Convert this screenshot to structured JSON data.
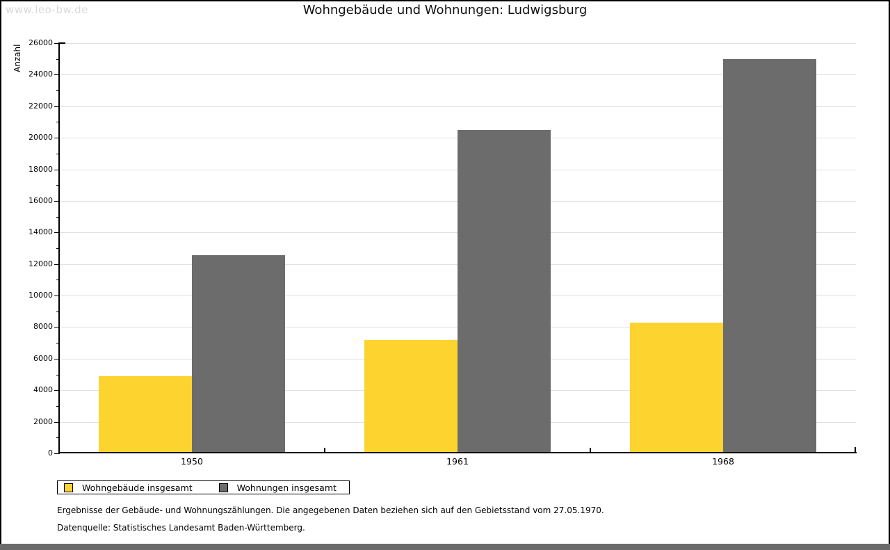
{
  "watermark": "www.leo-bw.de",
  "header": {
    "title": "Wohngebäude und Wohnungen: Ludwigsburg"
  },
  "chart_data": {
    "type": "bar",
    "title": "Wohngebäude und Wohnungen: Ludwigsburg",
    "xlabel": "",
    "ylabel": "Anzahl",
    "categories": [
      "1950",
      "1961",
      "1968"
    ],
    "series": [
      {
        "name": "Wohngebäude insgesamt",
        "color": "#fdd32f",
        "values": [
          4900,
          7200,
          8300
        ]
      },
      {
        "name": "Wohnungen insgesamt",
        "color": "#6c6c6c",
        "values": [
          12550,
          20470,
          25000
        ]
      }
    ],
    "ylim": [
      0,
      26000
    ],
    "ytick_step": 2000,
    "minor_tick_step": 1000,
    "grid": true,
    "gridline_color": "#e0e0e0",
    "legend_position": "bottom-left"
  },
  "footnotes": {
    "line1": "Ergebnisse der Gebäude- und Wohnungszählungen. Die angegebenen Daten beziehen sich auf den Gebietsstand vom 27.05.1970.",
    "line2": "Datenquelle: Statistisches Landesamt Baden-Württemberg."
  },
  "colors": {
    "bar_yellow": "#fdd32f",
    "bar_gray": "#6c6c6c",
    "gridline": "#e0e0e0",
    "watermark": "#d9d9d9",
    "bottom_strip": "#6a6a6a",
    "axis": "#000000"
  }
}
